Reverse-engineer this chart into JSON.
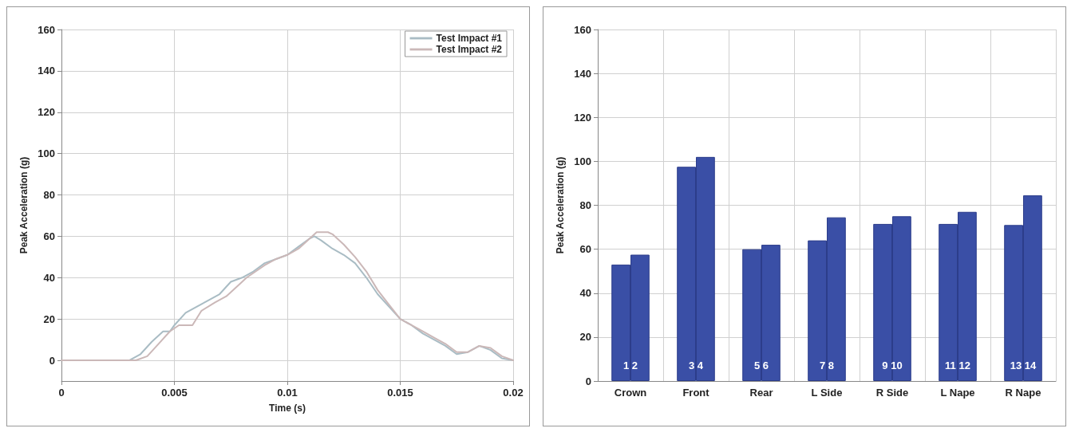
{
  "chart_data": [
    {
      "type": "line",
      "xlabel": "Time (s)",
      "ylabel": "Peak Acceleration (g)",
      "xlim": [
        0,
        0.02
      ],
      "xticks": [
        0,
        0.005,
        0.01,
        0.015,
        0.02
      ],
      "ylim": [
        -10,
        160
      ],
      "yticks": [
        0,
        20,
        40,
        60,
        80,
        100,
        120,
        140,
        160
      ],
      "grid": true,
      "legend": "top right",
      "marker": "none",
      "line_style": "solid",
      "series": [
        {
          "name": "Test Impact #1",
          "color": "#a9bcc4",
          "x": [
            0,
            0.003,
            0.0035,
            0.004,
            0.0045,
            0.0048,
            0.005,
            0.0055,
            0.006,
            0.0065,
            0.007,
            0.0075,
            0.008,
            0.0085,
            0.009,
            0.0095,
            0.01,
            0.0105,
            0.011,
            0.0112,
            0.0115,
            0.012,
            0.0125,
            0.013,
            0.0135,
            0.014,
            0.0145,
            0.015,
            0.0155,
            0.016,
            0.0165,
            0.017,
            0.0175,
            0.018,
            0.0185,
            0.019,
            0.0195,
            0.02
          ],
          "values": [
            0,
            0,
            3,
            9,
            14,
            14,
            17,
            23,
            26,
            29,
            32,
            38,
            40,
            43,
            47,
            49,
            51,
            55,
            59,
            60,
            58,
            54,
            51,
            47,
            40,
            32,
            26,
            20,
            17,
            13,
            10,
            7,
            3,
            4,
            7,
            5,
            1,
            0
          ]
        },
        {
          "name": "Test Impact #2",
          "color": "#cbb8b8",
          "x": [
            0,
            0.0033,
            0.0038,
            0.0043,
            0.0048,
            0.0052,
            0.0058,
            0.0062,
            0.0068,
            0.0073,
            0.0078,
            0.0082,
            0.009,
            0.0095,
            0.01,
            0.0105,
            0.011,
            0.0113,
            0.0118,
            0.012,
            0.0125,
            0.013,
            0.0135,
            0.014,
            0.0145,
            0.015,
            0.0155,
            0.016,
            0.0165,
            0.017,
            0.0175,
            0.018,
            0.0185,
            0.019,
            0.0195,
            0.02
          ],
          "values": [
            0,
            0,
            2,
            8,
            14,
            17,
            17,
            24,
            28,
            31,
            36,
            40,
            46,
            49,
            51,
            54,
            59,
            62,
            62,
            61,
            56,
            50,
            43,
            34,
            27,
            20,
            17,
            14,
            11,
            8,
            4,
            4,
            7,
            6,
            2,
            0
          ]
        }
      ]
    },
    {
      "type": "bar",
      "ylabel": "Peak Acceleration (g)",
      "categories": [
        "Crown",
        "Front",
        "Rear",
        "L Side",
        "R Side",
        "L Nape",
        "R Nape"
      ],
      "ylim": [
        0,
        160
      ],
      "yticks": [
        0,
        20,
        40,
        60,
        80,
        100,
        120,
        140,
        160
      ],
      "grid": true,
      "series": [
        {
          "color": "#3a4fa6",
          "values": [
            53,
            97.5,
            60,
            64,
            71.5,
            71.5,
            71
          ]
        },
        {
          "color": "#3a4fa6",
          "values": [
            57.5,
            102,
            62,
            74.5,
            75,
            77,
            84.5
          ]
        }
      ],
      "annotations": [
        "1 2",
        "3 4",
        "5 6",
        "7 8",
        "9 10",
        "11 12",
        "13 14"
      ]
    }
  ]
}
